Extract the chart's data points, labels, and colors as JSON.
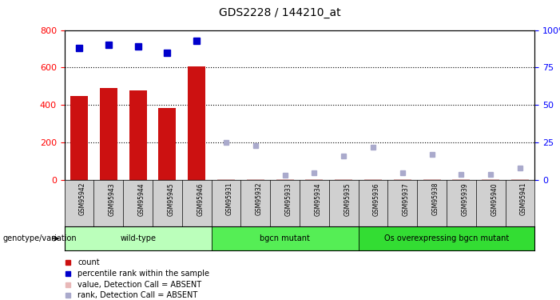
{
  "title": "GDS2228 / 144210_at",
  "samples": [
    "GSM95942",
    "GSM95943",
    "GSM95944",
    "GSM95945",
    "GSM95946",
    "GSM95931",
    "GSM95932",
    "GSM95933",
    "GSM95934",
    "GSM95935",
    "GSM95936",
    "GSM95937",
    "GSM95938",
    "GSM95939",
    "GSM95940",
    "GSM95941"
  ],
  "bar_values": [
    450,
    490,
    480,
    385,
    605,
    0,
    0,
    0,
    0,
    0,
    0,
    0,
    0,
    0,
    0,
    0
  ],
  "bar_present": [
    true,
    true,
    true,
    true,
    true,
    false,
    false,
    false,
    false,
    false,
    false,
    false,
    false,
    false,
    false,
    false
  ],
  "percentile_values": [
    88,
    90,
    89,
    85,
    93,
    null,
    null,
    null,
    null,
    null,
    null,
    null,
    null,
    null,
    null,
    null
  ],
  "absent_value_data": [
    null,
    null,
    null,
    null,
    null,
    6,
    6,
    3,
    3,
    3,
    3,
    3,
    3,
    3,
    3,
    3
  ],
  "absent_rank_data": [
    null,
    null,
    null,
    null,
    null,
    25,
    23,
    3,
    5,
    16,
    22,
    5,
    17,
    4,
    4,
    8
  ],
  "groups": [
    {
      "label": "wild-type",
      "start": 0,
      "end": 5,
      "color": "#bbffbb"
    },
    {
      "label": "bgcn mutant",
      "start": 5,
      "end": 10,
      "color": "#55ee55"
    },
    {
      "label": "Os overexpressing bgcn mutant",
      "start": 10,
      "end": 16,
      "color": "#33dd33"
    }
  ],
  "ylim_left": [
    0,
    800
  ],
  "ylim_right": [
    0,
    100
  ],
  "yticks_left": [
    0,
    200,
    400,
    600,
    800
  ],
  "yticks_right": [
    0,
    25,
    50,
    75,
    100
  ],
  "bar_color": "#cc1111",
  "percentile_color": "#0000cc",
  "absent_value_color": "#e8b8b8",
  "absent_rank_color": "#aaaacc",
  "legend_items": [
    {
      "label": "count",
      "color": "#cc1111"
    },
    {
      "label": "percentile rank within the sample",
      "color": "#0000cc"
    },
    {
      "label": "value, Detection Call = ABSENT",
      "color": "#e8b8b8"
    },
    {
      "label": "rank, Detection Call = ABSENT",
      "color": "#aaaacc"
    }
  ],
  "genotype_label": "genotype/variation",
  "background_color": "#ffffff"
}
